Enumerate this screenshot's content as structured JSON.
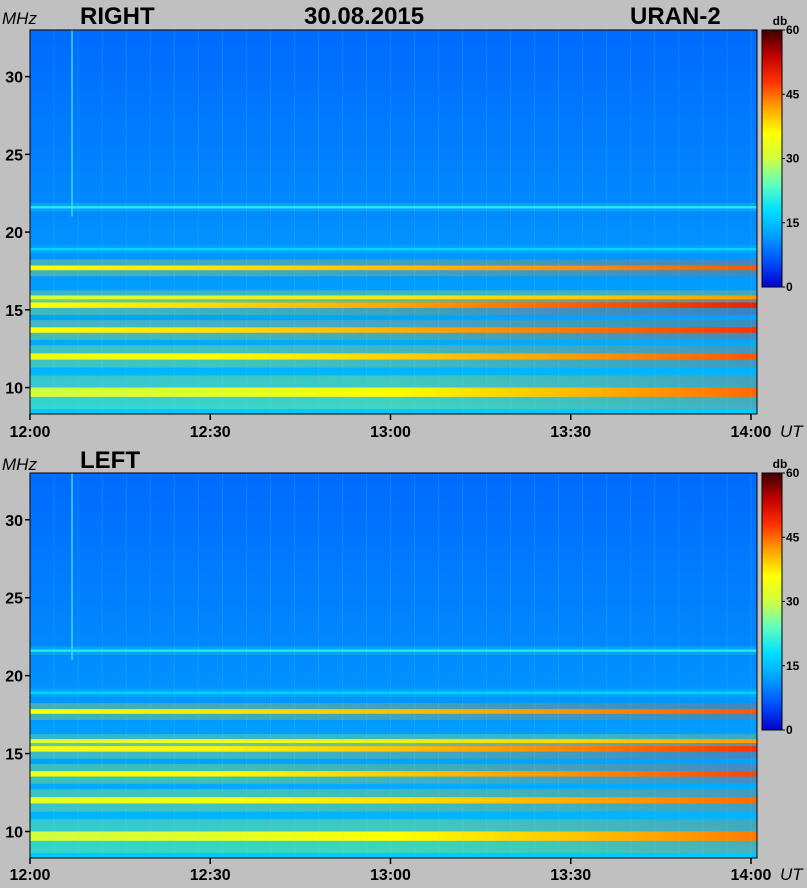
{
  "header": {
    "date": "30.08.2015",
    "instrument": "URAN-2"
  },
  "colors": {
    "background": "#c0c0c0",
    "colormap": [
      "#0000cc",
      "#0050ff",
      "#00a0ff",
      "#00e0ff",
      "#60ffc0",
      "#d0ff40",
      "#ffff00",
      "#ffa000",
      "#ff3000",
      "#c00000",
      "#400000"
    ]
  },
  "chart_data": [
    {
      "type": "heatmap",
      "title": "RIGHT",
      "ylabel": "MHz",
      "xlabel": "UT",
      "x_ticks": [
        "12:00",
        "12:30",
        "13:00",
        "13:30",
        "14:00"
      ],
      "y_ticks": [
        10,
        15,
        20,
        25,
        30
      ],
      "ylim": [
        8.3,
        33
      ],
      "xlim": [
        "12:00",
        "14:01"
      ],
      "colorbar": {
        "label": "db",
        "range": [
          0,
          60
        ],
        "ticks": [
          0,
          15,
          30,
          45,
          60
        ]
      },
      "background_db": {
        "base_at_8MHz": 17,
        "base_at_33MHz": 8
      },
      "bands": [
        {
          "freq_MHz": 21.6,
          "db_start": 20,
          "db_end": 20,
          "width_MHz": 0.15
        },
        {
          "freq_MHz": 18.9,
          "db_start": 17,
          "db_end": 17,
          "width_MHz": 0.15
        },
        {
          "freq_MHz": 17.7,
          "db_start": 36,
          "db_end": 46,
          "width_MHz": 0.3
        },
        {
          "freq_MHz": 15.8,
          "db_start": 30,
          "db_end": 40,
          "width_MHz": 0.25
        },
        {
          "freq_MHz": 15.3,
          "db_start": 36,
          "db_end": 50,
          "width_MHz": 0.35
        },
        {
          "freq_MHz": 13.7,
          "db_start": 36,
          "db_end": 48,
          "width_MHz": 0.35
        },
        {
          "freq_MHz": 12.0,
          "db_start": 34,
          "db_end": 46,
          "width_MHz": 0.4
        },
        {
          "freq_MHz": 9.7,
          "db_start": 30,
          "db_end": 45,
          "width_MHz": 0.6
        }
      ]
    },
    {
      "type": "heatmap",
      "title": "LEFT",
      "ylabel": "MHz",
      "xlabel": "UT",
      "x_ticks": [
        "12:00",
        "12:30",
        "13:00",
        "13:30",
        "14:00"
      ],
      "y_ticks": [
        10,
        15,
        20,
        25,
        30
      ],
      "ylim": [
        8.3,
        33
      ],
      "xlim": [
        "12:00",
        "14:01"
      ],
      "colorbar": {
        "label": "db",
        "range": [
          0,
          60
        ],
        "ticks": [
          0,
          15,
          30,
          45,
          60
        ]
      },
      "background_db": {
        "base_at_8MHz": 17,
        "base_at_33MHz": 8
      },
      "bands": [
        {
          "freq_MHz": 21.6,
          "db_start": 20,
          "db_end": 20,
          "width_MHz": 0.15
        },
        {
          "freq_MHz": 18.9,
          "db_start": 17,
          "db_end": 17,
          "width_MHz": 0.15
        },
        {
          "freq_MHz": 17.7,
          "db_start": 36,
          "db_end": 46,
          "width_MHz": 0.3
        },
        {
          "freq_MHz": 15.8,
          "db_start": 30,
          "db_end": 40,
          "width_MHz": 0.25
        },
        {
          "freq_MHz": 15.3,
          "db_start": 34,
          "db_end": 48,
          "width_MHz": 0.35
        },
        {
          "freq_MHz": 13.7,
          "db_start": 34,
          "db_end": 47,
          "width_MHz": 0.35
        },
        {
          "freq_MHz": 12.0,
          "db_start": 33,
          "db_end": 45,
          "width_MHz": 0.4
        },
        {
          "freq_MHz": 9.7,
          "db_start": 30,
          "db_end": 44,
          "width_MHz": 0.6
        }
      ]
    }
  ]
}
